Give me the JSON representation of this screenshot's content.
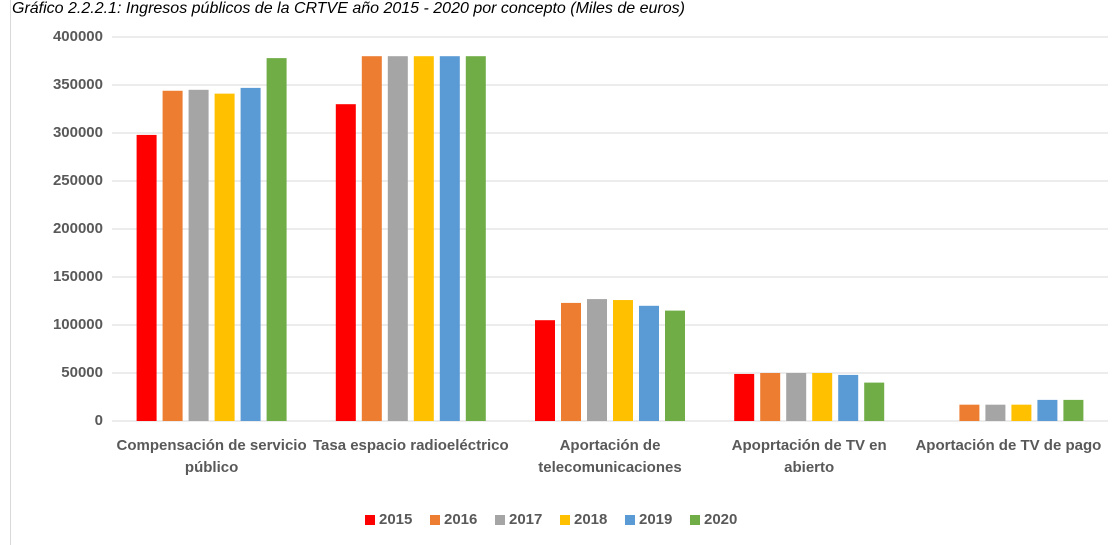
{
  "chart_data": {
    "type": "bar",
    "title": "Gráfico 2.2.2.1: Ingresos públicos de la CRTVE año 2015 - 2020 por concepto (Miles de euros)",
    "categories": [
      "Compensación de servicio público",
      "Tasa espacio radioeléctrico",
      "Aportación de telecomunicaciones",
      "Apoprtación de TV en abierto",
      "Aportación de TV de pago"
    ],
    "series": [
      {
        "name": "2015",
        "color": "#ff0000",
        "values": [
          298000,
          330000,
          105000,
          49000,
          null
        ]
      },
      {
        "name": "2016",
        "color": "#ed7d31",
        "values": [
          344000,
          380000,
          123000,
          50000,
          17000
        ]
      },
      {
        "name": "2017",
        "color": "#a5a5a5",
        "values": [
          345000,
          380000,
          127000,
          50000,
          17000
        ]
      },
      {
        "name": "2018",
        "color": "#ffc000",
        "values": [
          341000,
          380000,
          126000,
          50000,
          17000
        ]
      },
      {
        "name": "2019",
        "color": "#5b9bd5",
        "values": [
          347000,
          380000,
          120000,
          48000,
          22000
        ]
      },
      {
        "name": "2020",
        "color": "#70ad47",
        "values": [
          378000,
          380000,
          115000,
          40000,
          22000
        ]
      }
    ],
    "ylim": [
      0,
      400000
    ],
    "yticks": [
      0,
      50000,
      100000,
      150000,
      200000,
      250000,
      300000,
      350000,
      400000
    ],
    "grid": true,
    "legend": "bottom"
  }
}
